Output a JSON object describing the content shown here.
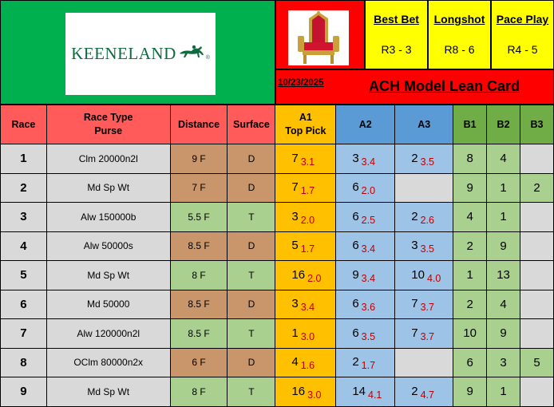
{
  "header": {
    "logo_text": "KEENELAND",
    "logo_mark": "®",
    "best_bet": {
      "title": "Best Bet",
      "value": "R3 - 3"
    },
    "longshot": {
      "title": "Longshot",
      "value": "R8 - 6"
    },
    "pace_play": {
      "title": "Pace Play",
      "value": "R4 - 5"
    },
    "date": "10/23/2025",
    "card_title": "ACH Model Lean Card"
  },
  "columns": {
    "race": "Race",
    "race_type_1": "Race Type",
    "race_type_2": "Purse",
    "distance": "Distance",
    "surface": "Surface",
    "a1_1": "A1",
    "a1_2": "Top Pick",
    "a2": "A2",
    "a3": "A3",
    "b1": "B1",
    "b2": "B2",
    "b3": "B3"
  },
  "rows": [
    {
      "race": "1",
      "type": "Clm 20000n2l",
      "distance": "9 F",
      "surface": "D",
      "a1": {
        "num": "7",
        "odds": "3.1"
      },
      "a2": {
        "num": "3",
        "odds": "3.4"
      },
      "a3": {
        "num": "2",
        "odds": "3.5"
      },
      "b1": "8",
      "b2": "4",
      "b3": ""
    },
    {
      "race": "2",
      "type": "Md Sp Wt",
      "distance": "7 F",
      "surface": "D",
      "a1": {
        "num": "7",
        "odds": "1.7"
      },
      "a2": {
        "num": "6",
        "odds": "2.0"
      },
      "a3": null,
      "b1": "9",
      "b2": "1",
      "b3": "2"
    },
    {
      "race": "3",
      "type": "Alw 150000b",
      "distance": "5.5 F",
      "surface": "T",
      "a1": {
        "num": "3",
        "odds": "2.0"
      },
      "a2": {
        "num": "6",
        "odds": "2.5"
      },
      "a3": {
        "num": "2",
        "odds": "2.6"
      },
      "b1": "4",
      "b2": "1",
      "b3": ""
    },
    {
      "race": "4",
      "type": "Alw 50000s",
      "distance": "8.5 F",
      "surface": "D",
      "a1": {
        "num": "5",
        "odds": "1.7"
      },
      "a2": {
        "num": "6",
        "odds": "3.4"
      },
      "a3": {
        "num": "3",
        "odds": "3.5"
      },
      "b1": "2",
      "b2": "9",
      "b3": ""
    },
    {
      "race": "5",
      "type": "Md Sp Wt",
      "distance": "8 F",
      "surface": "T",
      "a1": {
        "num": "16",
        "odds": "2.0"
      },
      "a2": {
        "num": "9",
        "odds": "3.4"
      },
      "a3": {
        "num": "10",
        "odds": "4.0"
      },
      "b1": "1",
      "b2": "13",
      "b3": ""
    },
    {
      "race": "6",
      "type": "Md 50000",
      "distance": "8.5 F",
      "surface": "D",
      "a1": {
        "num": "3",
        "odds": "3.4"
      },
      "a2": {
        "num": "6",
        "odds": "3.6"
      },
      "a3": {
        "num": "7",
        "odds": "3.7"
      },
      "b1": "2",
      "b2": "4",
      "b3": ""
    },
    {
      "race": "7",
      "type": "Alw 120000n2l",
      "distance": "8.5 F",
      "surface": "T",
      "a1": {
        "num": "1",
        "odds": "3.0"
      },
      "a2": {
        "num": "6",
        "odds": "3.5"
      },
      "a3": {
        "num": "7",
        "odds": "3.7"
      },
      "b1": "10",
      "b2": "9",
      "b3": ""
    },
    {
      "race": "8",
      "type": "OClm 80000n2x",
      "distance": "6 F",
      "surface": "D",
      "a1": {
        "num": "4",
        "odds": "1.6"
      },
      "a2": {
        "num": "2",
        "odds": "1.7"
      },
      "a3": null,
      "b1": "6",
      "b2": "3",
      "b3": "5"
    },
    {
      "race": "9",
      "type": "Md Sp Wt",
      "distance": "8 F",
      "surface": "T",
      "a1": {
        "num": "16",
        "odds": "3.0"
      },
      "a2": {
        "num": "14",
        "odds": "4.1"
      },
      "a3": {
        "num": "2",
        "odds": "4.7"
      },
      "b1": "9",
      "b2": "1",
      "b3": ""
    }
  ],
  "colors": {
    "logo_bg": "#00b04f",
    "header_red": "#ff0000",
    "pick_yellow": "#ffff00",
    "column_header_red": "#ff5b5b",
    "a1_orange": "#ffc000",
    "a_blue": "#9dc3e6",
    "b_green": "#a9d08e",
    "dirt_tan": "#c9956b",
    "odds_red": "#c00000"
  }
}
